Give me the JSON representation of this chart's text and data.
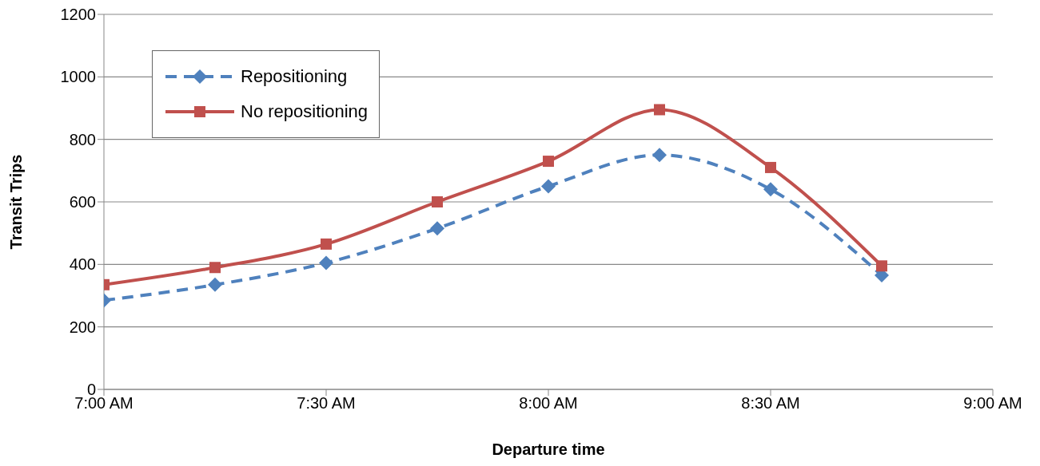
{
  "chart_data": {
    "type": "line",
    "xlabel": "Departure time",
    "ylabel": "Transit Trips",
    "x": [
      7,
      7.25,
      7.5,
      7.75,
      8,
      8.25,
      8.5,
      8.75
    ],
    "xlim": [
      7,
      9
    ],
    "xticks": [
      {
        "value": 7,
        "label": "7:00 AM"
      },
      {
        "value": 7.5,
        "label": "7:30 AM"
      },
      {
        "value": 8,
        "label": "8:00 AM"
      },
      {
        "value": 8.5,
        "label": "8:30 AM"
      },
      {
        "value": 9,
        "label": "9:00 AM"
      }
    ],
    "ylim": [
      0,
      1200
    ],
    "yticks": [
      0,
      200,
      400,
      600,
      800,
      1000,
      1200
    ],
    "grid": "y",
    "legend": "top left",
    "series": [
      {
        "name": "Repositioning",
        "color": "#4f81bd",
        "marker": "diamond",
        "line_style": "dashed",
        "values": [
          285,
          335,
          405,
          515,
          650,
          750,
          640,
          365
        ]
      },
      {
        "name": "No repositioning",
        "color": "#c0504d",
        "marker": "square",
        "line_style": "solid",
        "values": [
          335,
          390,
          465,
          600,
          730,
          895,
          710,
          395
        ]
      }
    ]
  }
}
